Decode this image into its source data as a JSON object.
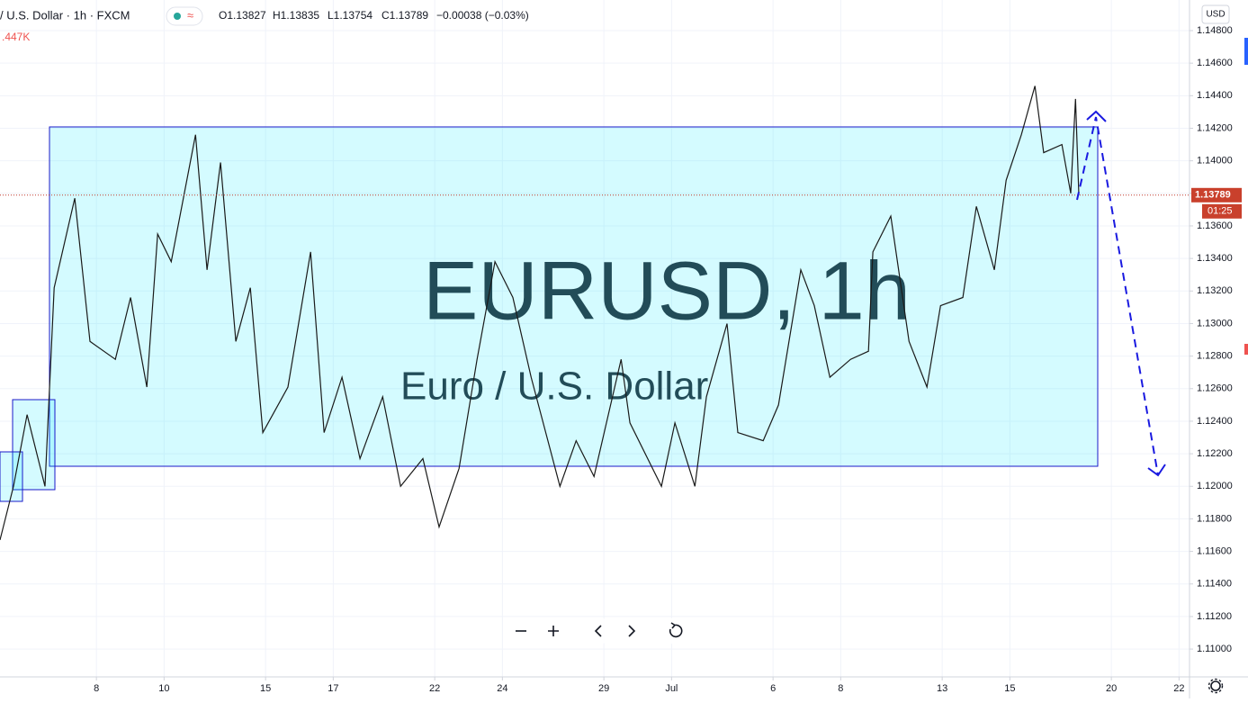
{
  "header": {
    "symbol": "/ U.S. Dollar · 1h · FXCM",
    "ohlc": [
      "O1.13827",
      "H1.13835",
      "L1.13754",
      "C1.13789",
      "−0.00038 (−0.03%)"
    ],
    "volume": ".447K",
    "currency": "USD"
  },
  "watermark": {
    "main": "EURUSD, 1h",
    "sub": "Euro / U.S. Dollar"
  },
  "chart_data": {
    "type": "line",
    "color": "#1a1a1a",
    "x": [
      -2.85,
      -2.45,
      -2.05,
      -1.52,
      -1.25,
      -0.64,
      -0.19,
      0.56,
      1.01,
      1.49,
      1.81,
      2.21,
      2.93,
      3.27,
      3.67,
      4.12,
      4.55,
      4.92,
      5.66,
      6.33,
      6.73,
      7.26,
      7.79,
      8.46,
      8.99,
      9.65,
      10.13,
      10.72,
      11.25,
      11.78,
      12.31,
      12.85,
      13.7,
      14.18,
      14.71,
      15.51,
      15.77,
      16.7,
      17.1,
      17.69,
      18.03,
      18.64,
      18.96,
      19.71,
      20.16,
      20.82,
      21.22,
      21.68,
      22.29,
      22.82,
      22.95,
      23.48,
      24.02,
      24.55,
      24.95,
      25.61,
      26.01,
      26.54,
      26.89,
      27.34,
      27.74,
      28.0,
      28.54,
      28.8,
      28.94,
      29.04
    ],
    "values": [
      1.1167,
      1.12,
      1.1244,
      1.12,
      1.1322,
      1.1377,
      1.1289,
      1.1278,
      1.1316,
      1.1261,
      1.1355,
      1.1338,
      1.1416,
      1.1333,
      1.1399,
      1.1289,
      1.1322,
      1.1233,
      1.1261,
      1.1344,
      1.1233,
      1.1267,
      1.1217,
      1.1255,
      1.12,
      1.1217,
      1.1175,
      1.1211,
      1.1278,
      1.1338,
      1.1316,
      1.1267,
      1.12,
      1.1228,
      1.1206,
      1.1278,
      1.1239,
      1.12,
      1.1239,
      1.12,
      1.1255,
      1.13,
      1.1233,
      1.1228,
      1.125,
      1.1333,
      1.1311,
      1.1267,
      1.1278,
      1.1283,
      1.1344,
      1.1366,
      1.1289,
      1.1261,
      1.1311,
      1.1316,
      1.1372,
      1.1333,
      1.1388,
      1.1416,
      1.1446,
      1.1405,
      1.141,
      1.138,
      1.1438,
      1.1379
    ],
    "xlim": [
      -2.85,
      32.31
    ],
    "xticks": [
      {
        "value": 0,
        "label": "8"
      },
      {
        "value": 2,
        "label": "10"
      },
      {
        "value": 5,
        "label": "15"
      },
      {
        "value": 7,
        "label": "17"
      },
      {
        "value": 10,
        "label": "22"
      },
      {
        "value": 12,
        "label": "24"
      },
      {
        "value": 15,
        "label": "29"
      },
      {
        "value": 17,
        "label": "Jul"
      },
      {
        "value": 20,
        "label": "6"
      },
      {
        "value": 22,
        "label": "8"
      },
      {
        "value": 25,
        "label": "13"
      },
      {
        "value": 27,
        "label": "15"
      },
      {
        "value": 30,
        "label": "20"
      },
      {
        "value": 32,
        "label": "22"
      }
    ],
    "ylim": [
      1.10829,
      1.14988
    ],
    "yticks": [
      {
        "value": 1.11,
        "label": "1.11000"
      },
      {
        "value": 1.112,
        "label": "1.11200"
      },
      {
        "value": 1.114,
        "label": "1.11400"
      },
      {
        "value": 1.116,
        "label": "1.11600"
      },
      {
        "value": 1.118,
        "label": "1.11800"
      },
      {
        "value": 1.12,
        "label": "1.12000"
      },
      {
        "value": 1.122,
        "label": "1.12200"
      },
      {
        "value": 1.124,
        "label": "1.12400"
      },
      {
        "value": 1.126,
        "label": "1.12600"
      },
      {
        "value": 1.128,
        "label": "1.12800"
      },
      {
        "value": 1.13,
        "label": "1.13000"
      },
      {
        "value": 1.132,
        "label": "1.13200"
      },
      {
        "value": 1.134,
        "label": "1.13400"
      },
      {
        "value": 1.136,
        "label": "1.13600"
      },
      {
        "value": 1.138,
        "label": "1.13800"
      },
      {
        "value": 1.14,
        "label": "1.14000"
      },
      {
        "value": 1.142,
        "label": "1.14200"
      },
      {
        "value": 1.144,
        "label": "1.14400"
      },
      {
        "value": 1.146,
        "label": "1.14600"
      },
      {
        "value": 1.148,
        "label": "1.14800"
      }
    ],
    "grid": true,
    "last_price": 1.13789,
    "countdown": "01:25"
  }
}
